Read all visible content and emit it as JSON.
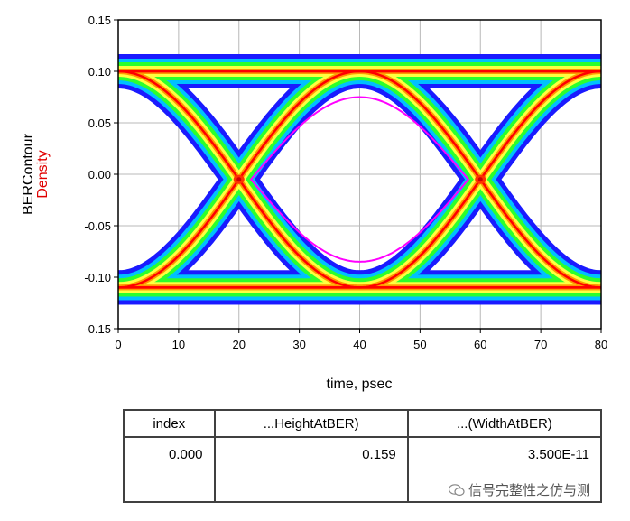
{
  "chart_data": {
    "type": "heatmap",
    "subtype": "eye-diagram",
    "xlabel": "time, psec",
    "ylabel": "BERContour",
    "ylabel2": "Density",
    "xlim": [
      0,
      80
    ],
    "ylim": [
      -0.15,
      0.15
    ],
    "x_ticks": [
      "0",
      "10",
      "20",
      "30",
      "40",
      "50",
      "60",
      "70",
      "80"
    ],
    "y_ticks": [
      "0.15",
      "0.10",
      "0.05",
      "0.00",
      "-0.05",
      "-0.10",
      "-0.15"
    ],
    "grid": true,
    "high_level": 0.1,
    "low_level": -0.11,
    "crossings_x": [
      20,
      60
    ],
    "crossing_y": -0.005,
    "eye_open_top": 0.075,
    "eye_open_bottom": -0.085,
    "density_colors": [
      "#1a1aff",
      "#00c0ff",
      "#2cff2c",
      "#ffff40",
      "#ff9900",
      "#ff0000"
    ],
    "contour_color": "#ff00ff"
  },
  "table": {
    "headers": [
      "index",
      "...HeightAtBER)",
      "...(WidthAtBER)"
    ],
    "rows": [
      [
        "0.000",
        "0.159",
        "3.500E-11"
      ]
    ]
  },
  "watermark": {
    "text": "信号完整性之仿与测"
  }
}
